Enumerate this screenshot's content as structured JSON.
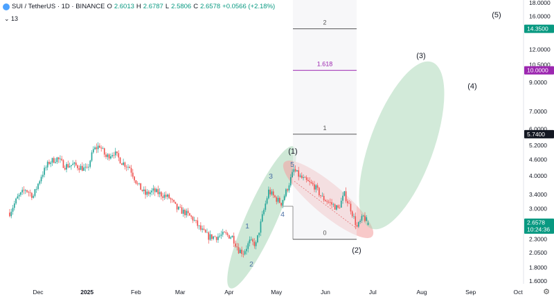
{
  "header": {
    "symbol": "SUI / TetherUS · 1D · BINANCE",
    "o_label": "O",
    "o": "2.6013",
    "h_label": "H",
    "h": "2.6787",
    "l_label": "L",
    "l": "2.5806",
    "c_label": "C",
    "c": "2.6578",
    "change": "+0.0566 (+2.18%)",
    "indicators": "⌄ 13"
  },
  "colors": {
    "up": "#26a69a",
    "down": "#ef5350",
    "green_zone": "#a5d6b4",
    "red_zone": "#f4a5a5",
    "fib_line": "#555555",
    "fib_1618": "#9c27b0",
    "tag_dark": "#131722",
    "tag_green": "#089981",
    "tag_purple": "#9c27b0",
    "tag_gray": "#787b86"
  },
  "chart_data": {
    "type": "candlestick",
    "title": "SUI / TetherUS · 1D · BINANCE",
    "y_scale": "log",
    "ylim": [
      1.55,
      18.0
    ],
    "x_ticks": [
      "Dec",
      "2025",
      "Feb",
      "Mar",
      "Apr",
      "May",
      "Jun",
      "Jul",
      "Aug",
      "Sep",
      "Oct"
    ],
    "y_ticks": [
      "18.0000",
      "16.0000",
      "12.0000",
      "10.5000",
      "9.0000",
      "7.0000",
      "6.0000",
      "5.2000",
      "4.6000",
      "4.0000",
      "3.4000",
      "3.0000",
      "2.3000",
      "2.0500",
      "1.8000",
      "1.6000"
    ],
    "price_tags": [
      {
        "label": "14.3500",
        "value": 14.35,
        "style": "green"
      },
      {
        "label": "10.0000",
        "value": 10.0,
        "style": "purple"
      },
      {
        "label": "5.7400",
        "value": 5.74,
        "style": "dark"
      },
      {
        "label": "2.6578",
        "value": 2.6578,
        "style": "green"
      },
      {
        "label": "10:24:36",
        "value": 2.6578,
        "style": "green_sub"
      }
    ],
    "fib_levels": [
      {
        "label": "2",
        "value": 14.35
      },
      {
        "label": "1.618",
        "value": 10.0
      },
      {
        "label": "1",
        "value": 5.74
      },
      {
        "label": "0",
        "value": 2.3
      }
    ],
    "elliott_main_waves": [
      "(1)",
      "(2)",
      "(3)",
      "(4)",
      "(5)"
    ],
    "elliott_sub_waves": [
      "1",
      "2",
      "3",
      "4",
      "5"
    ],
    "price_path": [
      {
        "date": "2024-11-13",
        "price": 2.9
      },
      {
        "date": "2024-11-18",
        "price": 3.3
      },
      {
        "date": "2024-11-23",
        "price": 3.55
      },
      {
        "date": "2024-11-28",
        "price": 3.35
      },
      {
        "date": "2024-12-03",
        "price": 4.0
      },
      {
        "date": "2024-12-08",
        "price": 4.5
      },
      {
        "date": "2024-12-13",
        "price": 4.65
      },
      {
        "date": "2024-12-18",
        "price": 4.35
      },
      {
        "date": "2024-12-23",
        "price": 4.4
      },
      {
        "date": "2024-12-28",
        "price": 4.3
      },
      {
        "date": "2025-01-01",
        "price": 4.2
      },
      {
        "date": "2025-01-05",
        "price": 5.0
      },
      {
        "date": "2025-01-09",
        "price": 5.2
      },
      {
        "date": "2025-01-13",
        "price": 4.7
      },
      {
        "date": "2025-01-18",
        "price": 4.9
      },
      {
        "date": "2025-01-23",
        "price": 4.5
      },
      {
        "date": "2025-01-28",
        "price": 4.3
      },
      {
        "date": "2025-02-02",
        "price": 3.7
      },
      {
        "date": "2025-02-07",
        "price": 3.4
      },
      {
        "date": "2025-02-12",
        "price": 3.5
      },
      {
        "date": "2025-02-17",
        "price": 3.4
      },
      {
        "date": "2025-02-22",
        "price": 3.3
      },
      {
        "date": "2025-02-27",
        "price": 3.0
      },
      {
        "date": "2025-03-04",
        "price": 2.9
      },
      {
        "date": "2025-03-09",
        "price": 2.75
      },
      {
        "date": "2025-03-14",
        "price": 2.5
      },
      {
        "date": "2025-03-19",
        "price": 2.35
      },
      {
        "date": "2025-03-24",
        "price": 2.35
      },
      {
        "date": "2025-03-29",
        "price": 2.4
      },
      {
        "date": "2025-04-03",
        "price": 2.35
      },
      {
        "date": "2025-04-07",
        "price": 2.1
      },
      {
        "date": "2025-04-10",
        "price": 2.05
      },
      {
        "date": "2025-04-14",
        "price": 2.25
      },
      {
        "date": "2025-04-18",
        "price": 2.2
      },
      {
        "date": "2025-04-22",
        "price": 2.8
      },
      {
        "date": "2025-04-26",
        "price": 3.5
      },
      {
        "date": "2025-04-30",
        "price": 3.3
      },
      {
        "date": "2025-05-04",
        "price": 3.15
      },
      {
        "date": "2025-05-08",
        "price": 3.6
      },
      {
        "date": "2025-05-12",
        "price": 4.2
      },
      {
        "date": "2025-05-16",
        "price": 3.95
      },
      {
        "date": "2025-05-20",
        "price": 3.8
      },
      {
        "date": "2025-05-25",
        "price": 3.65
      },
      {
        "date": "2025-05-30",
        "price": 3.3
      },
      {
        "date": "2025-06-04",
        "price": 3.15
      },
      {
        "date": "2025-06-09",
        "price": 3.0
      },
      {
        "date": "2025-06-13",
        "price": 3.4
      },
      {
        "date": "2025-06-17",
        "price": 3.0
      },
      {
        "date": "2025-06-21",
        "price": 2.55
      },
      {
        "date": "2025-06-25",
        "price": 2.8
      },
      {
        "date": "2025-06-28",
        "price": 2.6578
      }
    ]
  }
}
